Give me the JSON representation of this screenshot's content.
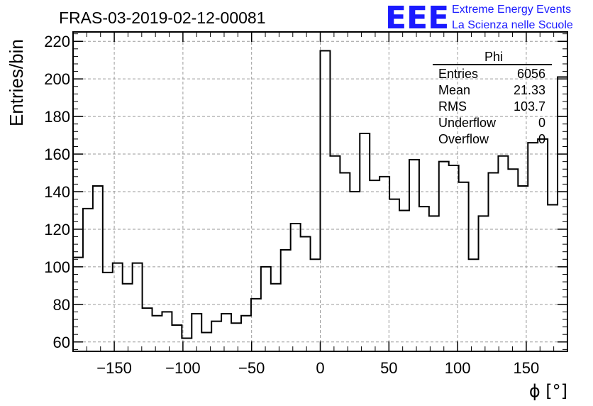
{
  "chart_data": {
    "type": "bar",
    "histogram": true,
    "title": "FRAS-03-2019-02-12-00081",
    "ylabel": "Entries/bin",
    "xlabel": "ϕ [°]",
    "xlim": [
      -180,
      180
    ],
    "ylim": [
      55,
      225
    ],
    "xticks": [
      -150,
      -100,
      -50,
      0,
      50,
      100,
      150
    ],
    "yticks": [
      60,
      80,
      100,
      120,
      140,
      160,
      180,
      200,
      220
    ],
    "grid": true,
    "bin_edges_start": -180,
    "bin_width": 7.2,
    "values": [
      105,
      131,
      143,
      97,
      102,
      91,
      102,
      78,
      74,
      76,
      69,
      62,
      75,
      65,
      71,
      75,
      70,
      74,
      83,
      100,
      91,
      109,
      123,
      116,
      104,
      215,
      159,
      150,
      140,
      171,
      146,
      148,
      136,
      130,
      157,
      132,
      127,
      156,
      154,
      145,
      104,
      127,
      150,
      159,
      152,
      143,
      166,
      168,
      133,
      201
    ],
    "color": "#000000"
  },
  "stats_box": {
    "name": "Phi",
    "rows": [
      {
        "label": "Entries",
        "value": "6056"
      },
      {
        "label": "Mean",
        "value": "21.33"
      },
      {
        "label": "RMS",
        "value": "103.7"
      },
      {
        "label": "Underflow",
        "value": "0"
      },
      {
        "label": "Overflow",
        "value": "0"
      }
    ]
  },
  "logo": {
    "mark": "EEE",
    "line1": "Extreme Energy Events",
    "line2": "La Scienza nelle Scuole",
    "color": "#1a1aff"
  }
}
